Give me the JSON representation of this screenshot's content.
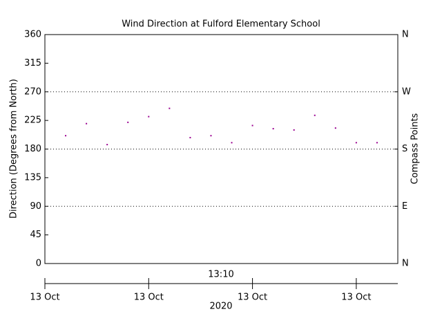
{
  "chart_data": {
    "type": "scatter",
    "title": "Wind Direction at Fulford Elementary School",
    "y_label": "Direction (Degrees from North)",
    "y2_label": "Compass Points",
    "time_label": "13:10",
    "year_label": "2020",
    "x": [
      1,
      2,
      3,
      4,
      5,
      6,
      7,
      8,
      9,
      10,
      11,
      12,
      13,
      14,
      15,
      16
    ],
    "series": [
      {
        "color": "#9a0090",
        "values": [
          201,
          220,
          187,
          222,
          231,
          244,
          198,
          201,
          190,
          217,
          212,
          210,
          233,
          213,
          190,
          190
        ]
      }
    ],
    "xlim": [
      0,
      17
    ],
    "xticks": [
      {
        "value": 0,
        "label": "13 Oct"
      },
      {
        "value": 5,
        "label": "13 Oct"
      },
      {
        "value": 10,
        "label": "13 Oct"
      },
      {
        "value": 15,
        "label": "13 Oct"
      }
    ],
    "ylim": [
      0,
      360
    ],
    "yticks": [
      0,
      45,
      90,
      135,
      180,
      225,
      270,
      315,
      360
    ],
    "y2lim": [
      0,
      360
    ],
    "y2ticks": [
      {
        "value": 0,
        "label": "N"
      },
      {
        "value": 90,
        "label": "E"
      },
      {
        "value": 180,
        "label": "S"
      },
      {
        "value": 270,
        "label": "W"
      },
      {
        "value": 360,
        "label": "N"
      }
    ],
    "grid": true
  }
}
